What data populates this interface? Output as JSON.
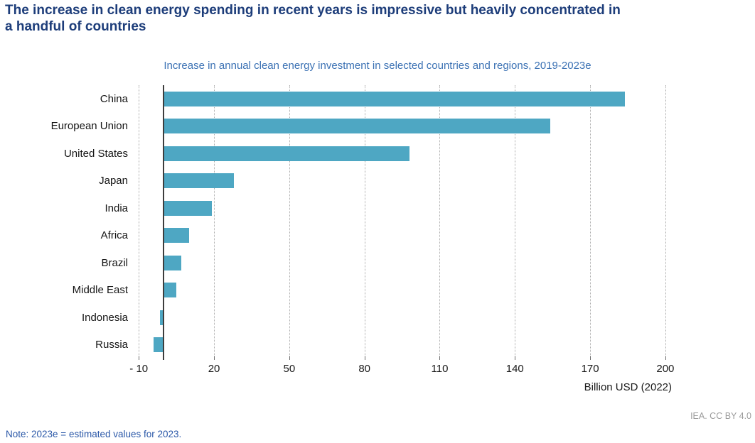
{
  "page": {
    "title_lines": [
      "The increase in clean energy spending in recent years is impressive but heavily concentrated in",
      "a handful of countries"
    ],
    "note": "Note: 2023e = estimated values for 2023.",
    "attribution": "IEA. CC BY 4.0"
  },
  "chart_data": {
    "type": "bar",
    "orientation": "horizontal",
    "title": "Increase in annual clean energy investment in selected countries and regions, 2019-2023e",
    "categories": [
      "China",
      "European Union",
      "United States",
      "Japan",
      "India",
      "Africa",
      "Brazil",
      "Middle East",
      "Indonesia",
      "Russia"
    ],
    "values": [
      184,
      154,
      98,
      28,
      19,
      10,
      7,
      5,
      -1.5,
      -4
    ],
    "xlabel": "Billion USD (2022)",
    "ylabel": "",
    "xlim": [
      -20,
      212
    ],
    "x_ticks": [
      -10,
      20,
      50,
      80,
      110,
      140,
      170,
      200
    ],
    "x_tick_labels": [
      "- 10",
      "20",
      "50",
      "80",
      "110",
      "140",
      "170",
      "200"
    ],
    "grid": "vertical dotted gridlines, zero axis solid",
    "legend": "none"
  },
  "colors": {
    "title": "#1D3D7A",
    "subtitle": "#3C72B4",
    "bar": "#4EA7C3",
    "gridline": "#ABABAB",
    "axis_line": "#3D3D3D",
    "note": "#2B58A8",
    "attribution": "#9C9C9C"
  }
}
